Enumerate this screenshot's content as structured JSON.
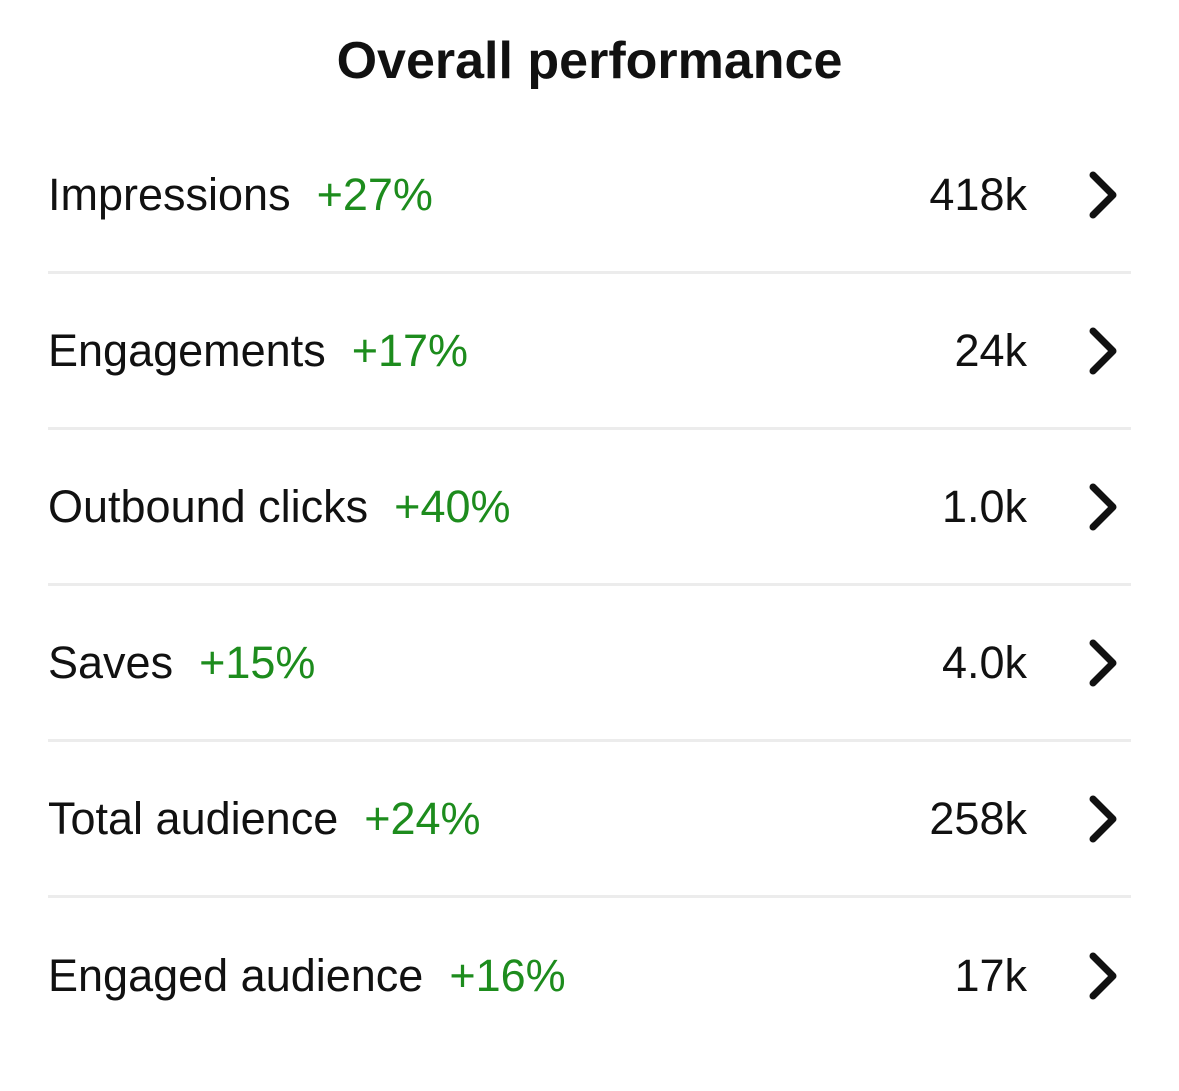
{
  "header": {
    "title": "Overall performance"
  },
  "metrics": [
    {
      "label": "Impressions",
      "change": "+27%",
      "value": "418k"
    },
    {
      "label": "Engagements",
      "change": "+17%",
      "value": "24k"
    },
    {
      "label": "Outbound clicks",
      "change": "+40%",
      "value": "1.0k"
    },
    {
      "label": "Saves",
      "change": "+15%",
      "value": "4.0k"
    },
    {
      "label": "Total audience",
      "change": "+24%",
      "value": "258k"
    },
    {
      "label": "Engaged audience",
      "change": "+16%",
      "value": "17k"
    }
  ],
  "icons": {
    "row_action": "chevron-right-icon"
  },
  "colors": {
    "positive_change": "#1d8c1d",
    "text": "#111111",
    "divider": "#ececec"
  }
}
